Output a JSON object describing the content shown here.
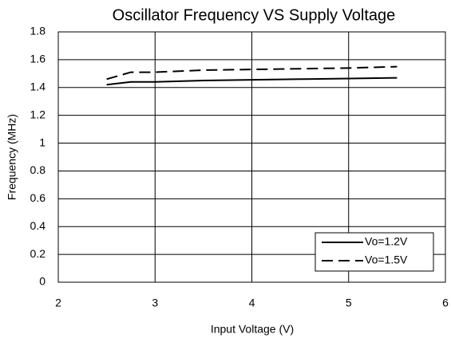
{
  "chart_data": {
    "type": "line",
    "title": "Oscillator Frequency VS Supply Voltage",
    "xlabel": "Input Voltage (V)",
    "ylabel": "Frequency (MHz)",
    "x": [
      2.5,
      2.75,
      3,
      3.5,
      4,
      4.5,
      5,
      5.5
    ],
    "series": [
      {
        "name": "Vo=1.2V",
        "color": "#000000",
        "dash": "solid",
        "values": [
          1.42,
          1.44,
          1.44,
          1.45,
          1.455,
          1.46,
          1.465,
          1.47
        ]
      },
      {
        "name": "Vo=1.5V",
        "color": "#000000",
        "dash": "dashed",
        "values": [
          1.46,
          1.51,
          1.51,
          1.525,
          1.53,
          1.535,
          1.54,
          1.55
        ]
      }
    ],
    "xlim": [
      2,
      6
    ],
    "xticks": [
      2,
      3,
      4,
      5,
      6
    ],
    "ylim": [
      0,
      1.8
    ],
    "yticks": [
      0,
      0.2,
      0.4,
      0.6,
      0.8,
      1,
      1.2,
      1.4,
      1.6,
      1.8
    ],
    "grid": true,
    "legend": "lower right"
  }
}
